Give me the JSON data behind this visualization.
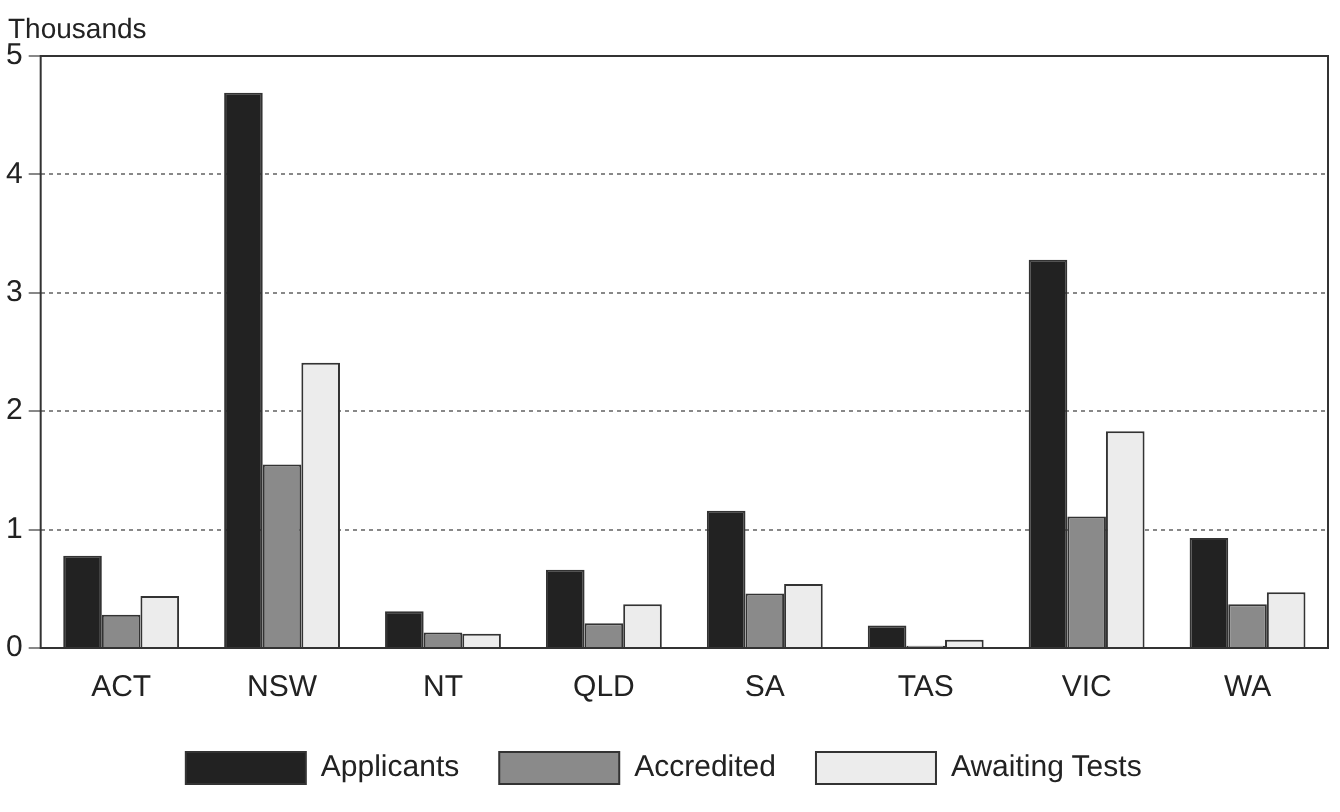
{
  "chart_data": {
    "type": "bar",
    "ylabel": "Thousands",
    "categories": [
      "ACT",
      "NSW",
      "NT",
      "QLD",
      "SA",
      "TAS",
      "VIC",
      "WA"
    ],
    "series": [
      {
        "name": "Applicants",
        "color": "#222222",
        "values": [
          0.78,
          4.69,
          0.31,
          0.66,
          1.16,
          0.19,
          3.28,
          0.93
        ]
      },
      {
        "name": "Accredited",
        "color": "#8a8a8a",
        "values": [
          0.28,
          1.55,
          0.13,
          0.21,
          0.46,
          0.02,
          1.11,
          0.37
        ]
      },
      {
        "name": "Awaiting Tests",
        "color": "#ececec",
        "values": [
          0.44,
          2.41,
          0.12,
          0.37,
          0.54,
          0.07,
          1.83,
          0.47
        ]
      }
    ],
    "ylim": [
      0,
      5
    ],
    "yticks": [
      0,
      1,
      2,
      3,
      4,
      5
    ],
    "grid": "y",
    "legend": "bottom"
  }
}
